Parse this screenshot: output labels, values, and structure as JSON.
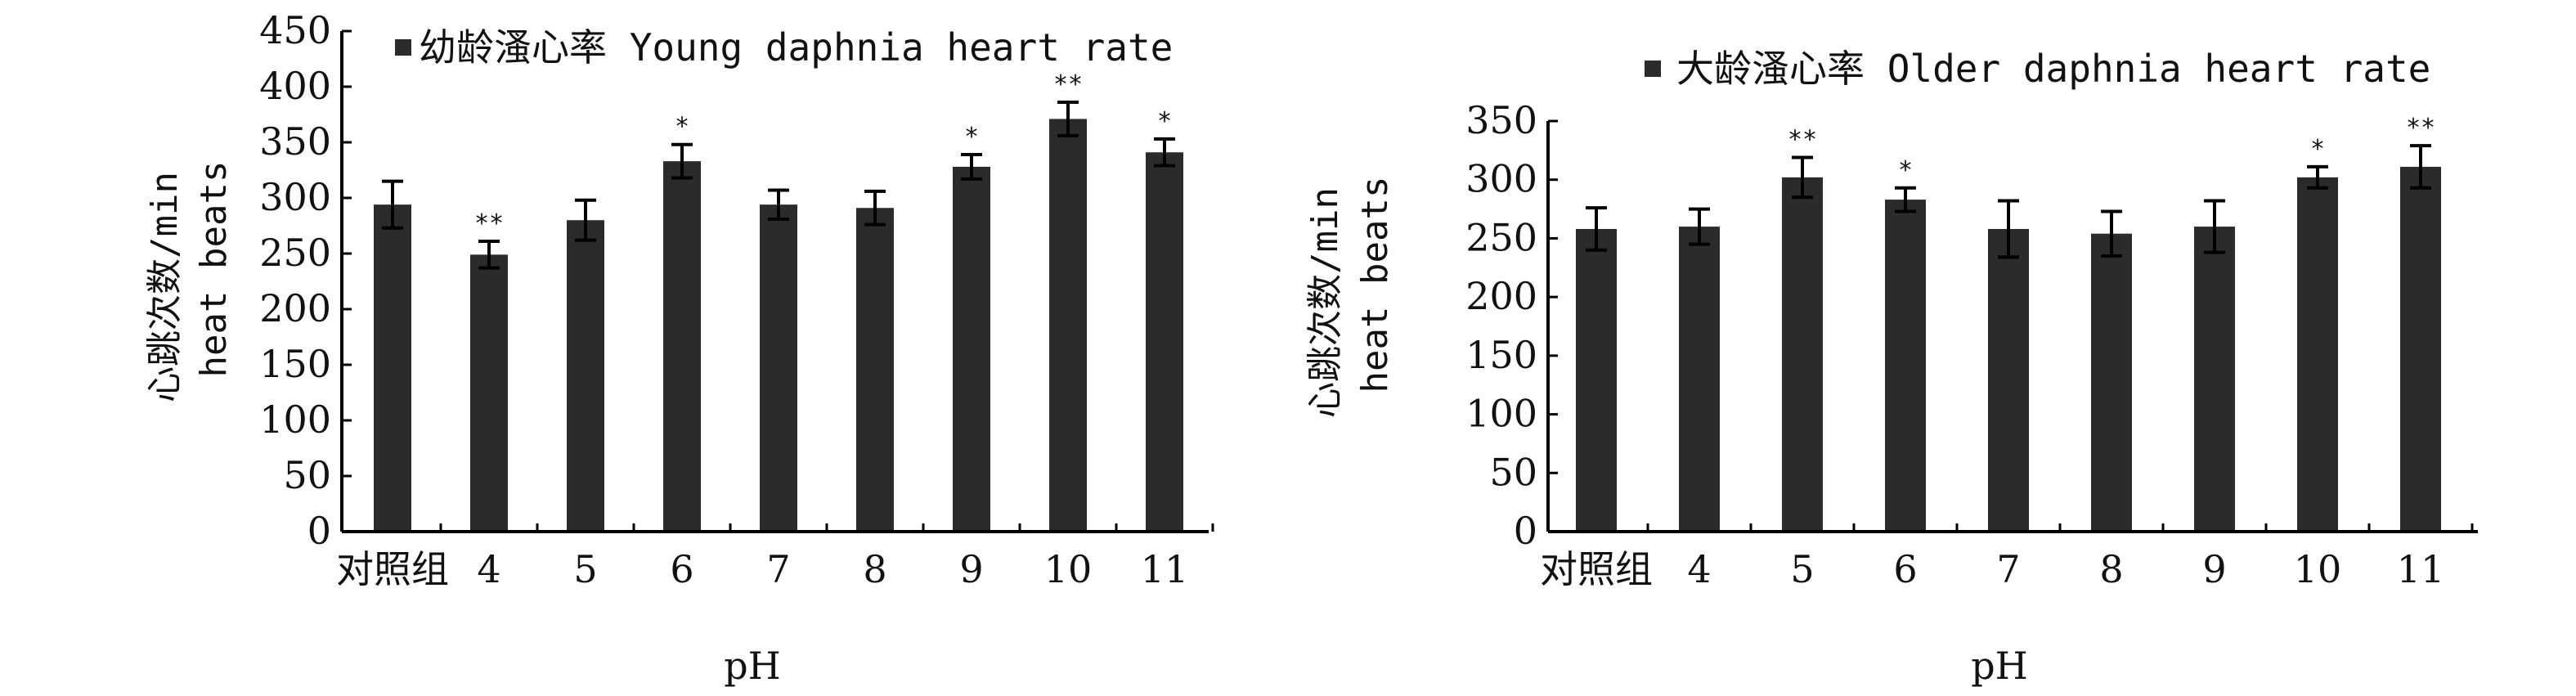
{
  "chart_data": [
    {
      "type": "bar",
      "xlabel": "pH",
      "ylabel_line1": "心跳次数/min",
      "ylabel_line2": "heat beats",
      "ylim": [
        0,
        450
      ],
      "yticks": [
        0,
        50,
        100,
        150,
        200,
        250,
        300,
        350,
        400,
        450
      ],
      "categories": [
        "对照组",
        "4",
        "5",
        "6",
        "7",
        "8",
        "9",
        "10",
        "11"
      ],
      "series": [
        {
          "name": "幼龄溞心率 Young daphnia heart rate",
          "values": [
            294,
            249,
            280,
            333,
            294,
            291,
            328,
            371,
            341
          ],
          "errors": [
            21,
            12,
            18,
            15,
            13,
            15,
            11,
            15,
            12
          ],
          "significance": [
            "",
            "**",
            "",
            "*",
            "",
            "",
            "*",
            "**",
            "*"
          ]
        }
      ],
      "bar_color": "#2b2b2b",
      "legend": "top"
    },
    {
      "type": "bar",
      "xlabel": "pH",
      "ylabel_line1": "心跳次数/min",
      "ylabel_line2": "heat beats",
      "ylim": [
        0,
        350
      ],
      "yticks": [
        0,
        50,
        100,
        150,
        200,
        250,
        300,
        350
      ],
      "categories": [
        "对照组",
        "4",
        "5",
        "6",
        "7",
        "8",
        "9",
        "10",
        "11"
      ],
      "series": [
        {
          "name": "大龄溞心率 Older daphnia heart rate",
          "values": [
            258,
            260,
            302,
            283,
            258,
            254,
            260,
            302,
            311
          ],
          "errors": [
            18,
            15,
            17,
            10,
            24,
            19,
            22,
            9,
            18
          ],
          "significance": [
            "",
            "",
            "**",
            "*",
            "",
            "",
            "",
            "*",
            "**"
          ]
        }
      ],
      "bar_color": "#2b2b2b",
      "legend": "top-right"
    }
  ]
}
